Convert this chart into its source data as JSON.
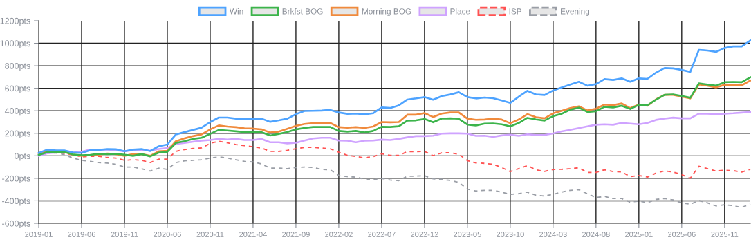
{
  "chart_data": {
    "type": "line",
    "categories": [
      "2019-01",
      null,
      null,
      null,
      null,
      "2019-06",
      null,
      null,
      null,
      null,
      "2019-11",
      null,
      null,
      null,
      null,
      "2020-06",
      null,
      null,
      null,
      null,
      "2020-11",
      null,
      null,
      null,
      null,
      "2021-04",
      null,
      null,
      null,
      null,
      "2021-09",
      null,
      null,
      null,
      null,
      "2022-02",
      null,
      null,
      null,
      null,
      "2022-07",
      null,
      null,
      null,
      null,
      "2022-12",
      null,
      null,
      null,
      null,
      "2023-05",
      null,
      null,
      null,
      null,
      "2023-10",
      null,
      null,
      null,
      null,
      "2024-03",
      null,
      null,
      null,
      null,
      "2024-08",
      null,
      null,
      null,
      null,
      "2025-01",
      null,
      null,
      null,
      null,
      "2025-06",
      null,
      null,
      null,
      null,
      "2025-11",
      null,
      null,
      null
    ],
    "series": [
      {
        "name": "Win",
        "color": "#4ea3ff",
        "line_style": "solid",
        "values": [
          25,
          55,
          48,
          48,
          30,
          25,
          50,
          52,
          60,
          58,
          40,
          55,
          60,
          42,
          85,
          100,
          190,
          210,
          230,
          250,
          300,
          340,
          340,
          330,
          325,
          330,
          330,
          302,
          315,
          330,
          370,
          398,
          400,
          402,
          408,
          385,
          373,
          375,
          368,
          378,
          430,
          425,
          448,
          500,
          510,
          522,
          498,
          530,
          545,
          565,
          522,
          510,
          518,
          512,
          492,
          470,
          526,
          577,
          546,
          540,
          580,
          607,
          633,
          658,
          623,
          637,
          682,
          674,
          688,
          658,
          688,
          684,
          739,
          780,
          777,
          763,
          745,
          942,
          936,
          924,
          958,
          972,
          972,
          1025
        ]
      },
      {
        "name": "Brkfst BOG",
        "color": "#3cb44b",
        "line_style": "solid",
        "values": [
          8,
          32,
          36,
          35,
          12,
          5,
          8,
          18,
          15,
          18,
          10,
          0,
          15,
          -5,
          28,
          35,
          115,
          130,
          150,
          160,
          195,
          230,
          225,
          218,
          210,
          210,
          209,
          180,
          195,
          211,
          235,
          248,
          256,
          256,
          256,
          221,
          215,
          221,
          207,
          221,
          258,
          256,
          262,
          313,
          315,
          327,
          298,
          331,
          333,
          329,
          278,
          270,
          286,
          288,
          280,
          262,
          292,
          337,
          323,
          313,
          353,
          374,
          410,
          428,
          390,
          396,
          436,
          430,
          445,
          416,
          453,
          449,
          499,
          542,
          546,
          532,
          516,
          644,
          633,
          623,
          654,
          656,
          654,
          698
        ]
      },
      {
        "name": "Morning BOG",
        "color": "#f08a3c",
        "line_style": "solid",
        "values": [
          18,
          44,
          45,
          35,
          10,
          0,
          5,
          10,
          20,
          15,
          0,
          15,
          15,
          0,
          40,
          45,
          130,
          155,
          175,
          190,
          235,
          270,
          260,
          255,
          245,
          242,
          235,
          207,
          215,
          240,
          266,
          283,
          290,
          290,
          292,
          255,
          250,
          255,
          248,
          260,
          300,
          298,
          300,
          365,
          365,
          380,
          345,
          375,
          385,
          385,
          330,
          320,
          322,
          330,
          322,
          290,
          323,
          370,
          343,
          333,
          378,
          400,
          424,
          440,
          404,
          418,
          455,
          450,
          465,
          424,
          455,
          445,
          501,
          542,
          542,
          526,
          510,
          633,
          623,
          607,
          631,
          631,
          627,
          668
        ]
      },
      {
        "name": "Place",
        "color": "#cfa3ff",
        "line_style": "solid",
        "values": [
          0,
          22,
          28,
          40,
          30,
          35,
          55,
          55,
          55,
          50,
          40,
          50,
          55,
          45,
          60,
          70,
          105,
          115,
          125,
          135,
          140,
          150,
          145,
          150,
          140,
          140,
          150,
          120,
          120,
          110,
          116,
          136,
          154,
          160,
          160,
          136,
          134,
          120,
          134,
          136,
          144,
          140,
          150,
          164,
          175,
          175,
          179,
          197,
          199,
          199,
          197,
          177,
          179,
          168,
          181,
          187,
          177,
          191,
          185,
          185,
          199,
          217,
          231,
          246,
          262,
          276,
          280,
          276,
          292,
          286,
          280,
          292,
          319,
          331,
          339,
          333,
          333,
          374,
          374,
          369,
          374,
          378,
          384,
          390
        ]
      },
      {
        "name": "ISP",
        "color": "#ff5252",
        "line_style": "dashed",
        "values": [
          10,
          25,
          30,
          20,
          10,
          -10,
          -5,
          -5,
          -15,
          -20,
          -40,
          -35,
          -40,
          -60,
          -30,
          -30,
          40,
          55,
          65,
          70,
          110,
          130,
          115,
          100,
          90,
          80,
          69,
          40,
          39,
          49,
          63,
          75,
          75,
          69,
          63,
          32,
          4,
          -6,
          -18,
          -8,
          18,
          4,
          4,
          37,
          37,
          39,
          2,
          26,
          28,
          14,
          -43,
          -63,
          -67,
          -75,
          -104,
          -140,
          -114,
          -87,
          -124,
          -138,
          -122,
          -120,
          -114,
          -106,
          -148,
          -148,
          -124,
          -140,
          -144,
          -185,
          -175,
          -189,
          -154,
          -134,
          -144,
          -168,
          -199,
          -93,
          -114,
          -136,
          -128,
          -132,
          -144,
          -120
        ]
      },
      {
        "name": "Evening",
        "color": "#9a9ea6",
        "line_style": "dashed",
        "values": [
          15,
          25,
          25,
          10,
          -20,
          -40,
          -50,
          -60,
          -65,
          -75,
          -100,
          -100,
          -115,
          -135,
          -110,
          -120,
          -60,
          -45,
          -40,
          -35,
          -20,
          -10,
          -20,
          -35,
          -50,
          -55,
          -73,
          -110,
          -110,
          -114,
          -104,
          -100,
          -104,
          -120,
          -124,
          -175,
          -185,
          -189,
          -209,
          -215,
          -201,
          -215,
          -221,
          -181,
          -181,
          -177,
          -205,
          -209,
          -219,
          -236,
          -296,
          -313,
          -307,
          -307,
          -323,
          -343,
          -337,
          -323,
          -351,
          -357,
          -343,
          -323,
          -307,
          -302,
          -337,
          -371,
          -361,
          -380,
          -380,
          -412,
          -402,
          -416,
          -388,
          -380,
          -392,
          -418,
          -430,
          -398,
          -418,
          -445,
          -434,
          -443,
          -459,
          -428
        ]
      }
    ],
    "ylim": [
      -600,
      1200
    ],
    "yticks": [
      {
        "value": -600,
        "label": "-600pts"
      },
      {
        "value": -400,
        "label": "-400pts"
      },
      {
        "value": -200,
        "label": "-200pts"
      },
      {
        "value": 0,
        "label": "0pts"
      },
      {
        "value": 200,
        "label": "200pts"
      },
      {
        "value": 400,
        "label": "400pts"
      },
      {
        "value": 600,
        "label": "600pts"
      },
      {
        "value": 800,
        "label": "800pts"
      },
      {
        "value": 1000,
        "label": "1000pts"
      },
      {
        "value": 1200,
        "label": "1200pts"
      }
    ],
    "grid": true,
    "legend": "top"
  }
}
